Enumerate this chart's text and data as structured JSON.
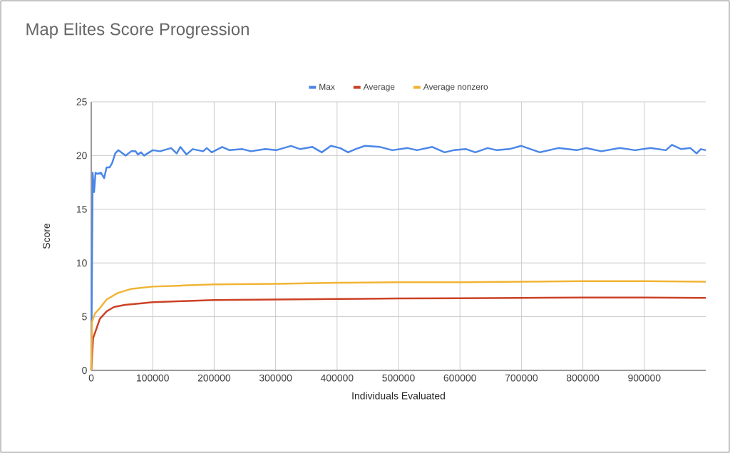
{
  "chart_data": {
    "type": "line",
    "title": "Map Elites Score Progression",
    "xlabel": "Individuals Evaluated",
    "ylabel": "Score",
    "xlim": [
      0,
      1000000
    ],
    "ylim": [
      0,
      25
    ],
    "xticks": [
      0,
      100000,
      200000,
      300000,
      400000,
      500000,
      600000,
      700000,
      800000,
      900000
    ],
    "yticks": [
      0,
      5,
      10,
      15,
      20,
      25
    ],
    "grid": true,
    "legend": "top",
    "marker": "none",
    "line_style": "solid",
    "series": [
      {
        "name": "Max",
        "color": "#4a86e8",
        "x": [
          0,
          2300,
          4600,
          7000,
          10000,
          16000,
          21000,
          25000,
          30000,
          34000,
          39000,
          44000,
          56000,
          65000,
          72000,
          76000,
          81000,
          86000,
          100000,
          112000,
          130000,
          139000,
          145000,
          155000,
          165000,
          182000,
          188000,
          196000,
          213000,
          225000,
          246000,
          260000,
          283000,
          301000,
          325000,
          340000,
          360000,
          375000,
          390000,
          405000,
          418000,
          430000,
          445000,
          470000,
          490000,
          515000,
          530000,
          555000,
          575000,
          590000,
          610000,
          625000,
          645000,
          660000,
          680000,
          700000,
          715000,
          730000,
          760000,
          790000,
          805000,
          830000,
          860000,
          885000,
          910000,
          935000,
          945000,
          960000,
          975000,
          985000,
          992000,
          1000000
        ],
        "values": [
          0,
          18.4,
          16.6,
          18.4,
          18.3,
          18.4,
          17.9,
          18.9,
          18.9,
          19.3,
          20.2,
          20.5,
          20.0,
          20.4,
          20.4,
          20.1,
          20.3,
          20.0,
          20.5,
          20.4,
          20.7,
          20.2,
          20.8,
          20.1,
          20.6,
          20.4,
          20.7,
          20.3,
          20.8,
          20.5,
          20.6,
          20.4,
          20.6,
          20.5,
          20.9,
          20.6,
          20.8,
          20.3,
          20.9,
          20.7,
          20.3,
          20.6,
          20.9,
          20.8,
          20.5,
          20.7,
          20.5,
          20.8,
          20.3,
          20.5,
          20.6,
          20.3,
          20.7,
          20.5,
          20.6,
          20.9,
          20.6,
          20.3,
          20.7,
          20.5,
          20.7,
          20.4,
          20.7,
          20.5,
          20.7,
          20.5,
          21.0,
          20.6,
          20.7,
          20.2,
          20.6,
          20.5
        ]
      },
      {
        "name": "Average",
        "color": "#cc4125",
        "x": [
          0,
          3000,
          8000,
          14000,
          25000,
          37000,
          55000,
          83000,
          100000,
          150000,
          200000,
          300000,
          400000,
          500000,
          600000,
          700000,
          800000,
          900000,
          1000000
        ],
        "values": [
          0,
          3.0,
          3.8,
          4.8,
          5.5,
          5.9,
          6.1,
          6.25,
          6.35,
          6.45,
          6.55,
          6.6,
          6.65,
          6.7,
          6.72,
          6.75,
          6.78,
          6.78,
          6.75
        ]
      },
      {
        "name": "Average nonzero",
        "color": "#f1b434",
        "x": [
          0,
          1200,
          6000,
          14000,
          25000,
          43000,
          66000,
          100000,
          150000,
          200000,
          300000,
          400000,
          500000,
          600000,
          700000,
          800000,
          900000,
          1000000
        ],
        "values": [
          0,
          4.5,
          5.3,
          5.8,
          6.6,
          7.2,
          7.6,
          7.8,
          7.9,
          8.0,
          8.05,
          8.15,
          8.2,
          8.2,
          8.25,
          8.3,
          8.3,
          8.25
        ]
      }
    ]
  }
}
